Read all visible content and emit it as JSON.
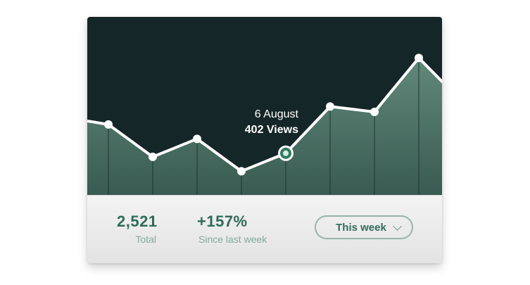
{
  "chart_data": {
    "type": "line",
    "x": [
      1,
      2,
      3,
      4,
      5,
      6,
      7,
      8,
      9
    ],
    "values": [
      418,
      400,
      410,
      392,
      402,
      428,
      425,
      455,
      430
    ],
    "highlight_index": 4
  },
  "tooltip": {
    "date": "6 August",
    "views": "402 Views"
  },
  "stats": {
    "total_value": "2,521",
    "total_label": "Total",
    "change_value": "+157%",
    "change_label": "Since last week"
  },
  "period": {
    "label": "This week",
    "icon": "chevron-down-icon"
  },
  "colors": {
    "chart_bg": "#152628",
    "line": "#ffffff",
    "fill": "#5f8b7b",
    "accent": "#2f6b59",
    "muted": "#86a89d"
  }
}
